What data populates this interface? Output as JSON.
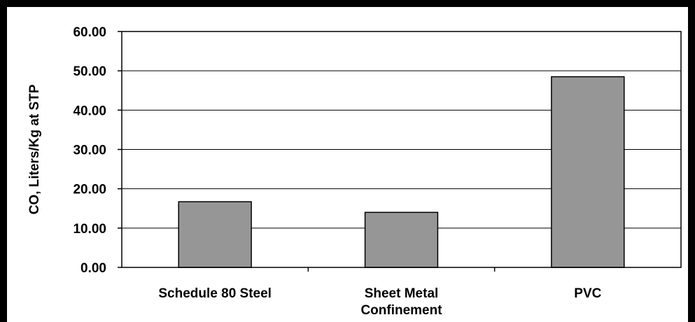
{
  "chart_data": {
    "type": "bar",
    "title": "",
    "xlabel": "",
    "ylabel": "CO, Liters/Kg at STP",
    "categories": [
      [
        "Schedule 80 Steel"
      ],
      [
        "Sheet Metal",
        "Confinement"
      ],
      [
        "PVC"
      ]
    ],
    "values": [
      16.7,
      14.0,
      48.5
    ],
    "ylim": [
      0,
      60
    ],
    "yticks": [
      "0.00",
      "10.00",
      "20.00",
      "30.00",
      "40.00",
      "50.00",
      "60.00"
    ],
    "ytick_values": [
      0,
      10,
      20,
      30,
      40,
      50,
      60
    ],
    "grid": true,
    "legend": "none",
    "colors": {
      "bar_fill": "#969696",
      "bar_stroke": "#000000",
      "grid": "#000000",
      "frame": "#000000"
    }
  }
}
